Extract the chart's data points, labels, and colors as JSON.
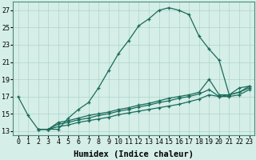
{
  "xlabel": "Humidex (Indice chaleur)",
  "xlim": [
    -0.5,
    23.5
  ],
  "ylim": [
    12.5,
    28
  ],
  "yticks": [
    13,
    15,
    17,
    19,
    21,
    23,
    25,
    27
  ],
  "xticks": [
    0,
    1,
    2,
    3,
    4,
    5,
    6,
    7,
    8,
    9,
    10,
    11,
    12,
    13,
    14,
    15,
    16,
    17,
    18,
    19,
    20,
    21,
    22,
    23
  ],
  "background_color": "#d5eee8",
  "grid_color": "#aed4ca",
  "line_color": "#1a6b5a",
  "line1_x": [
    0,
    1,
    2,
    3,
    4,
    5,
    6,
    7,
    8,
    9,
    10,
    11,
    12,
    13,
    14,
    15,
    16,
    17,
    18,
    19,
    20,
    21,
    22,
    23
  ],
  "line1_y": [
    17.0,
    14.8,
    13.2,
    13.2,
    13.2,
    14.5,
    15.5,
    16.3,
    18.0,
    20.0,
    22.0,
    23.5,
    25.2,
    26.0,
    27.0,
    27.3,
    27.0,
    26.5,
    24.0,
    22.5,
    21.2,
    17.2,
    18.0,
    18.2
  ],
  "line2_x": [
    2,
    3,
    4,
    5,
    6,
    7,
    8,
    9,
    10,
    11,
    12,
    13,
    14,
    15,
    16,
    17,
    18,
    19,
    20,
    21,
    22,
    23
  ],
  "line2_y": [
    13.2,
    13.2,
    14.0,
    14.2,
    14.5,
    14.8,
    15.0,
    15.2,
    15.5,
    15.7,
    16.0,
    16.2,
    16.5,
    16.8,
    17.0,
    17.2,
    17.5,
    19.0,
    17.2,
    17.2,
    17.5,
    18.2
  ],
  "line3_x": [
    2,
    3,
    4,
    5,
    6,
    7,
    8,
    9,
    10,
    11,
    12,
    13,
    14,
    15,
    16,
    17,
    18,
    19,
    20,
    21,
    22,
    23
  ],
  "line3_y": [
    13.2,
    13.2,
    13.8,
    14.0,
    14.3,
    14.5,
    14.8,
    15.0,
    15.3,
    15.5,
    15.8,
    16.0,
    16.3,
    16.5,
    16.8,
    17.0,
    17.3,
    17.8,
    17.0,
    17.0,
    17.2,
    17.8
  ],
  "line4_x": [
    2,
    3,
    4,
    5,
    6,
    7,
    8,
    9,
    10,
    11,
    12,
    13,
    14,
    15,
    16,
    17,
    18,
    19,
    20,
    21,
    22,
    23
  ],
  "line4_y": [
    13.2,
    13.2,
    13.5,
    13.7,
    14.0,
    14.2,
    14.4,
    14.6,
    14.9,
    15.1,
    15.3,
    15.5,
    15.7,
    15.9,
    16.1,
    16.4,
    16.7,
    17.2,
    17.0,
    17.2,
    17.5,
    18.0
  ],
  "xlabel_fontsize": 7.5,
  "tick_fontsize": 6
}
